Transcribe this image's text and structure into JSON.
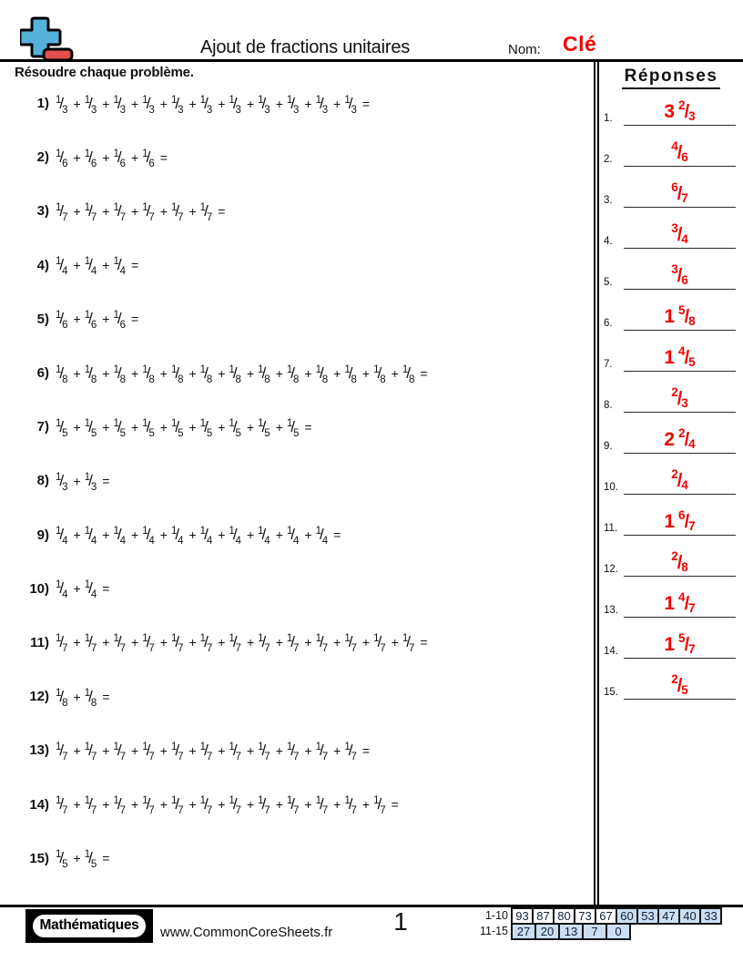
{
  "header": {
    "title": "Ajout de fractions unitaires",
    "name_label": "Nom:",
    "name_value": "Clé",
    "instructions": "Résoudre chaque problème.",
    "answers_title": "Réponses"
  },
  "notation": {
    "numerator": "1",
    "plus_sign": "+",
    "equals_sign": "=",
    "number_suffix": ")",
    "answer_suffix": "."
  },
  "problems": [
    {
      "n": "1",
      "denominator": "3",
      "term_count": 11
    },
    {
      "n": "2",
      "denominator": "6",
      "term_count": 4
    },
    {
      "n": "3",
      "denominator": "7",
      "term_count": 6
    },
    {
      "n": "4",
      "denominator": "4",
      "term_count": 3
    },
    {
      "n": "5",
      "denominator": "6",
      "term_count": 3
    },
    {
      "n": "6",
      "denominator": "8",
      "term_count": 13
    },
    {
      "n": "7",
      "denominator": "5",
      "term_count": 9
    },
    {
      "n": "8",
      "denominator": "3",
      "term_count": 2
    },
    {
      "n": "9",
      "denominator": "4",
      "term_count": 10
    },
    {
      "n": "10",
      "denominator": "4",
      "term_count": 2
    },
    {
      "n": "11",
      "denominator": "7",
      "term_count": 13
    },
    {
      "n": "12",
      "denominator": "8",
      "term_count": 2
    },
    {
      "n": "13",
      "denominator": "7",
      "term_count": 11
    },
    {
      "n": "14",
      "denominator": "7",
      "term_count": 12
    },
    {
      "n": "15",
      "denominator": "5",
      "term_count": 2
    }
  ],
  "answers": [
    {
      "n": "1",
      "whole": "3",
      "num": "2",
      "den": "3"
    },
    {
      "n": "2",
      "whole": "",
      "num": "4",
      "den": "6"
    },
    {
      "n": "3",
      "whole": "",
      "num": "6",
      "den": "7"
    },
    {
      "n": "4",
      "whole": "",
      "num": "3",
      "den": "4"
    },
    {
      "n": "5",
      "whole": "",
      "num": "3",
      "den": "6"
    },
    {
      "n": "6",
      "whole": "1",
      "num": "5",
      "den": "8"
    },
    {
      "n": "7",
      "whole": "1",
      "num": "4",
      "den": "5"
    },
    {
      "n": "8",
      "whole": "",
      "num": "2",
      "den": "3"
    },
    {
      "n": "9",
      "whole": "2",
      "num": "2",
      "den": "4"
    },
    {
      "n": "10",
      "whole": "",
      "num": "2",
      "den": "4"
    },
    {
      "n": "11",
      "whole": "1",
      "num": "6",
      "den": "7"
    },
    {
      "n": "12",
      "whole": "",
      "num": "2",
      "den": "8"
    },
    {
      "n": "13",
      "whole": "1",
      "num": "4",
      "den": "7"
    },
    {
      "n": "14",
      "whole": "1",
      "num": "5",
      "den": "7"
    },
    {
      "n": "15",
      "whole": "",
      "num": "2",
      "den": "5"
    }
  ],
  "footer": {
    "brand": "Mathématiques",
    "url": "www.CommonCoreSheets.fr",
    "page": "1",
    "score_table": [
      {
        "label": "1-10",
        "cells": [
          {
            "v": "93",
            "highlighted": false
          },
          {
            "v": "87",
            "highlighted": false
          },
          {
            "v": "80",
            "highlighted": false
          },
          {
            "v": "73",
            "highlighted": false
          },
          {
            "v": "67",
            "highlighted": false
          },
          {
            "v": "60",
            "highlighted": true
          },
          {
            "v": "53",
            "highlighted": true
          },
          {
            "v": "47",
            "highlighted": true
          },
          {
            "v": "40",
            "highlighted": true
          },
          {
            "v": "33",
            "highlighted": true
          }
        ]
      },
      {
        "label": "11-15",
        "cells": [
          {
            "v": "27",
            "highlighted": true
          },
          {
            "v": "20",
            "highlighted": true
          },
          {
            "v": "13",
            "highlighted": true
          },
          {
            "v": "7",
            "highlighted": true
          },
          {
            "v": "0",
            "highlighted": true
          }
        ]
      }
    ]
  },
  "colors": {
    "accent_red": "#f20000",
    "logo_blue": "#54b1d9",
    "logo_red": "#e25050",
    "cell_blue": "#cbdef2"
  }
}
